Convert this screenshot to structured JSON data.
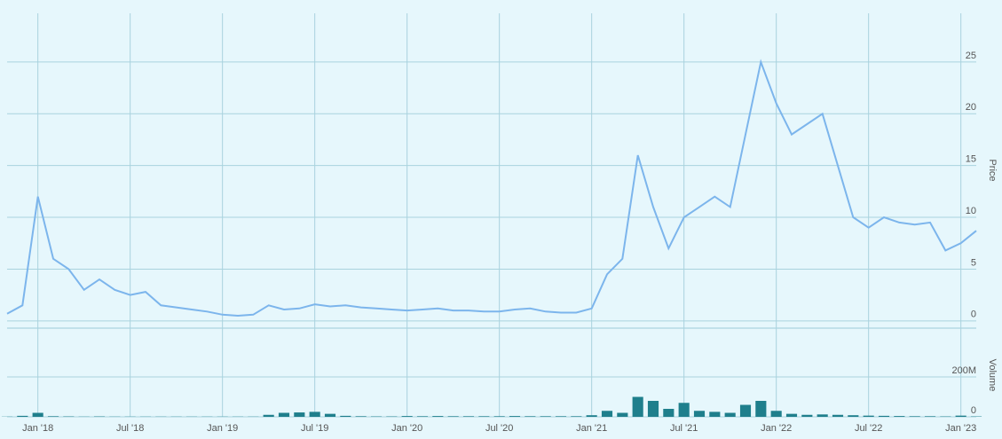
{
  "chart_data": [
    {
      "type": "line",
      "y_label": "Price",
      "color": "#7cb5ec",
      "x": [
        "2017-11",
        "2017-12",
        "2018-01",
        "2018-02",
        "2018-03",
        "2018-04",
        "2018-05",
        "2018-06",
        "2018-07",
        "2018-08",
        "2018-09",
        "2018-10",
        "2018-11",
        "2018-12",
        "2019-01",
        "2019-02",
        "2019-03",
        "2019-04",
        "2019-05",
        "2019-06",
        "2019-07",
        "2019-08",
        "2019-09",
        "2019-10",
        "2019-11",
        "2019-12",
        "2020-01",
        "2020-02",
        "2020-03",
        "2020-04",
        "2020-05",
        "2020-06",
        "2020-07",
        "2020-08",
        "2020-09",
        "2020-10",
        "2020-11",
        "2020-12",
        "2021-01",
        "2021-02",
        "2021-03",
        "2021-04",
        "2021-05",
        "2021-06",
        "2021-07",
        "2021-08",
        "2021-09",
        "2021-10",
        "2021-11",
        "2021-12",
        "2022-01",
        "2022-02",
        "2022-03",
        "2022-04",
        "2022-05",
        "2022-06",
        "2022-07",
        "2022-08",
        "2022-09",
        "2022-10",
        "2022-11",
        "2022-12",
        "2023-01",
        "2023-02"
      ],
      "values": [
        0.7,
        1.5,
        12,
        6,
        5,
        3,
        4,
        3,
        2.5,
        2.8,
        1.5,
        1.3,
        1.1,
        0.9,
        0.6,
        0.5,
        0.6,
        1.5,
        1.1,
        1.2,
        1.6,
        1.4,
        1.5,
        1.3,
        1.2,
        1.1,
        1.0,
        1.1,
        1.2,
        1.0,
        1.0,
        0.9,
        0.9,
        1.1,
        1.2,
        0.9,
        0.8,
        0.8,
        1.2,
        4.5,
        6,
        16,
        11,
        7,
        10,
        11,
        12,
        11,
        18,
        25,
        21,
        18,
        19,
        20,
        15,
        10,
        9,
        10,
        9.5,
        9.3,
        9.5,
        6.8,
        7.5,
        8.7
      ],
      "xlim": [
        "2017-11",
        "2023-02"
      ],
      "xticks": [
        {
          "value": "2018-01",
          "label": "Jan '18"
        },
        {
          "value": "2018-07",
          "label": "Jul '18"
        },
        {
          "value": "2019-01",
          "label": "Jan '19"
        },
        {
          "value": "2019-07",
          "label": "Jul '19"
        },
        {
          "value": "2020-01",
          "label": "Jan '20"
        },
        {
          "value": "2020-07",
          "label": "Jul '20"
        },
        {
          "value": "2021-01",
          "label": "Jan '21"
        },
        {
          "value": "2021-07",
          "label": "Jul '21"
        },
        {
          "value": "2022-01",
          "label": "Jan '22"
        },
        {
          "value": "2022-07",
          "label": "Jul '22"
        },
        {
          "value": "2023-01",
          "label": "Jan '23"
        }
      ],
      "ylim": [
        -0.7,
        29.7
      ],
      "yticks": [
        0,
        5,
        10,
        15,
        20,
        25
      ],
      "grid": true
    },
    {
      "type": "bar",
      "y_label": "Volume",
      "color": "#1f7f8c",
      "x": [
        "2017-11",
        "2017-12",
        "2018-01",
        "2018-02",
        "2018-03",
        "2018-04",
        "2018-05",
        "2018-06",
        "2018-07",
        "2018-08",
        "2018-09",
        "2018-10",
        "2018-11",
        "2018-12",
        "2019-01",
        "2019-02",
        "2019-03",
        "2019-04",
        "2019-05",
        "2019-06",
        "2019-07",
        "2019-08",
        "2019-09",
        "2019-10",
        "2019-11",
        "2019-12",
        "2020-01",
        "2020-02",
        "2020-03",
        "2020-04",
        "2020-05",
        "2020-06",
        "2020-07",
        "2020-08",
        "2020-09",
        "2020-10",
        "2020-11",
        "2020-12",
        "2021-01",
        "2021-02",
        "2021-03",
        "2021-04",
        "2021-05",
        "2021-06",
        "2021-07",
        "2021-08",
        "2021-09",
        "2021-10",
        "2021-11",
        "2021-12",
        "2022-01",
        "2022-02",
        "2022-03",
        "2022-04",
        "2022-05",
        "2022-06",
        "2022-07",
        "2022-08",
        "2022-09",
        "2022-10",
        "2022-11",
        "2022-12",
        "2023-01",
        "2023-02"
      ],
      "values": [
        1000000,
        5000000,
        20000000,
        3000000,
        2000000,
        1000000,
        2000000,
        1000000,
        1000000,
        1000000,
        1000000,
        1000000,
        1000000,
        1000000,
        1000000,
        1000000,
        1000000,
        10000000,
        20000000,
        22000000,
        25000000,
        15000000,
        5000000,
        3000000,
        2000000,
        2000000,
        4000000,
        3000000,
        4000000,
        3000000,
        3000000,
        3000000,
        3000000,
        4000000,
        3000000,
        3000000,
        3000000,
        3000000,
        8000000,
        30000000,
        20000000,
        100000000,
        80000000,
        40000000,
        70000000,
        30000000,
        25000000,
        20000000,
        60000000,
        80000000,
        30000000,
        15000000,
        10000000,
        12000000,
        10000000,
        8000000,
        6000000,
        5000000,
        4000000,
        3000000,
        3000000,
        2000000,
        6000000,
        2000000
      ],
      "ylim": [
        0,
        409000000
      ],
      "yticks": [
        0,
        {
          "value": 200000000,
          "label": "200M"
        }
      ],
      "grid": true
    }
  ]
}
